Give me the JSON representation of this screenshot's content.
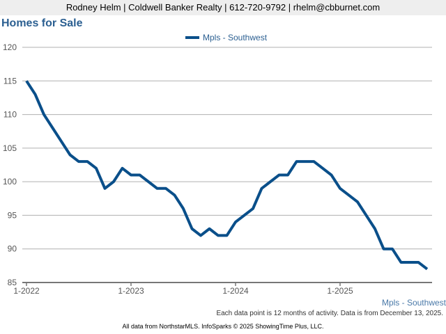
{
  "header": {
    "contact": "Rodney Helm | Coldwell Banker Realty | 612-720-9792 | rhelm@cbburnet.com"
  },
  "chart_data": {
    "type": "line",
    "title": "Homes for Sale",
    "xlabel": "",
    "ylabel": "",
    "ylim": [
      85,
      120
    ],
    "yticks": [
      85,
      90,
      95,
      100,
      105,
      110,
      115,
      120
    ],
    "xtick_labels": [
      "1-2022",
      "1-2023",
      "1-2024",
      "1-2025"
    ],
    "grid": true,
    "legend_position": "top-center",
    "x_start": "2022-01",
    "x_interval": "month",
    "series": [
      {
        "name": "Mpls - Southwest",
        "color": "#0a4f8a",
        "values": [
          115,
          113,
          110,
          108,
          106,
          104,
          103,
          103,
          102,
          99,
          100,
          102,
          101,
          101,
          100,
          99,
          99,
          98,
          96,
          93,
          92,
          93,
          92,
          92,
          94,
          95,
          96,
          99,
          100,
          101,
          101,
          103,
          103,
          103,
          102,
          101,
          99,
          98,
          97,
          95,
          93,
          90,
          90,
          88,
          88,
          88,
          87
        ]
      }
    ]
  },
  "footer": {
    "series_label": "Mpls - Southwest",
    "note": "Each data point is 12 months of activity. Data is from December 13, 2025.",
    "source": "All data from NorthstarMLS. InfoSparks © 2025 ShowingTime Plus, LLC."
  }
}
